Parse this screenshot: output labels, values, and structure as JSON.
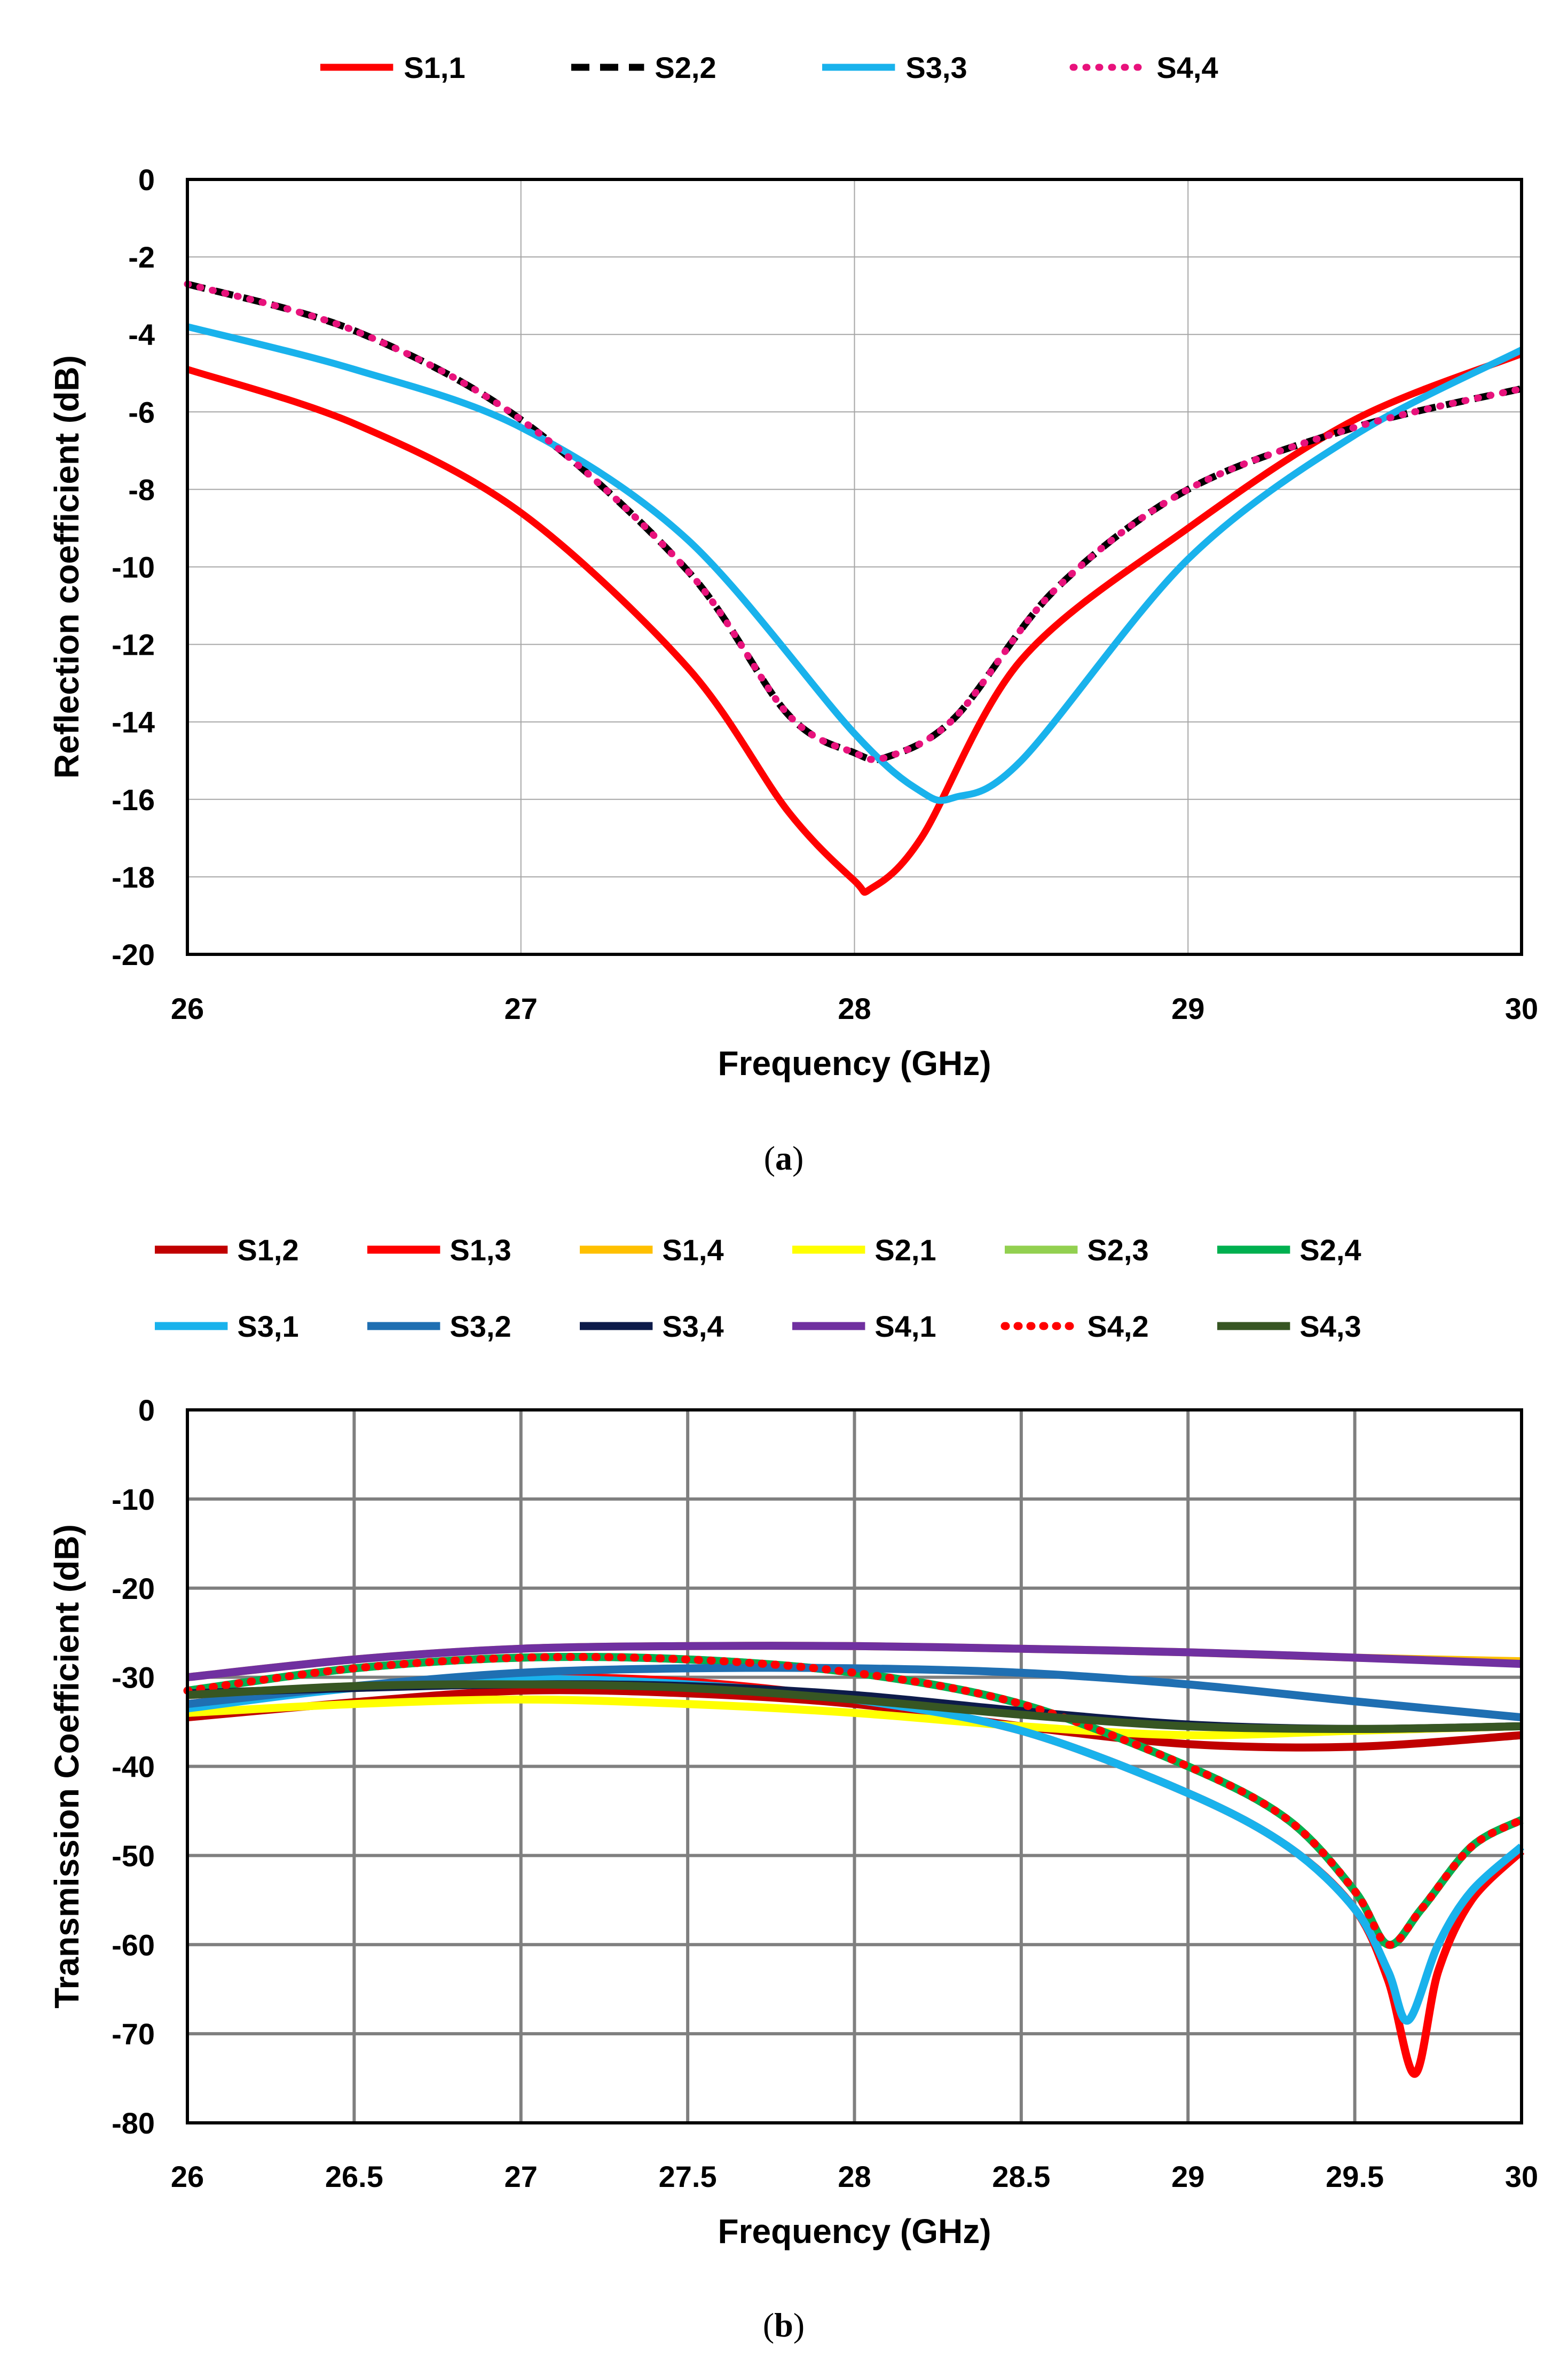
{
  "chart_data": [
    {
      "type": "line",
      "panel": "a",
      "caption_open": "(",
      "caption_letter": "a",
      "caption_close": ")",
      "xlabel": "Frequency (GHz)",
      "ylabel": "Reflection coefficient (dB)",
      "xlim": [
        26,
        30
      ],
      "ylim": [
        -20,
        0
      ],
      "xticks": [
        26,
        27,
        28,
        29,
        30
      ],
      "yticks": [
        0,
        -2,
        -4,
        -6,
        -8,
        -10,
        -12,
        -14,
        -16,
        -18,
        -20
      ],
      "legend_position": "top",
      "series": [
        {
          "name": "S1,1",
          "color": "#ff0000",
          "style": "solid",
          "x": [
            26,
            26.5,
            27,
            27.5,
            27.8,
            28,
            28.05,
            28.2,
            28.5,
            29,
            29.5,
            30
          ],
          "y": [
            -4.9,
            -6.3,
            -8.6,
            -12.6,
            -16.3,
            -18.1,
            -18.3,
            -17.0,
            -12.4,
            -9.0,
            -6.2,
            -4.5
          ]
        },
        {
          "name": "S2,2",
          "color": "#000000",
          "style": "dashed",
          "x": [
            26,
            26.5,
            27,
            27.5,
            27.8,
            28,
            28.1,
            28.3,
            28.6,
            29,
            29.5,
            30
          ],
          "y": [
            -2.7,
            -3.9,
            -6.2,
            -10.1,
            -13.8,
            -14.8,
            -14.9,
            -13.9,
            -10.6,
            -8.0,
            -6.4,
            -5.4
          ]
        },
        {
          "name": "S3,3",
          "color": "#19b2ec",
          "style": "solid",
          "x": [
            26,
            26.5,
            27,
            27.5,
            28,
            28.2,
            28.3,
            28.5,
            29,
            29.5,
            30
          ],
          "y": [
            -3.8,
            -4.9,
            -6.4,
            -9.3,
            -14.3,
            -15.8,
            -15.95,
            -15.0,
            -9.8,
            -6.6,
            -4.4
          ]
        },
        {
          "name": "S4,4",
          "color": "#e8127c",
          "style": "dotted",
          "x": [
            26,
            26.5,
            27,
            27.5,
            27.8,
            28,
            28.1,
            28.3,
            28.6,
            29,
            29.5,
            30
          ],
          "y": [
            -2.7,
            -3.9,
            -6.2,
            -10.1,
            -13.8,
            -14.8,
            -14.9,
            -13.9,
            -10.6,
            -8.0,
            -6.4,
            -5.4
          ]
        }
      ]
    },
    {
      "type": "line",
      "panel": "b",
      "caption_open": "(",
      "caption_letter": "b",
      "caption_close": ")",
      "xlabel": "Frequency (GHz)",
      "ylabel": "Transmission Coefficient (dB)",
      "xlim": [
        26,
        30
      ],
      "ylim": [
        -80,
        0
      ],
      "xticks": [
        26,
        26.5,
        27,
        27.5,
        28,
        28.5,
        29,
        29.5,
        30
      ],
      "yticks": [
        0,
        -10,
        -20,
        -30,
        -40,
        -50,
        -60,
        -70,
        -80
      ],
      "legend_position": "top",
      "series": [
        {
          "name": "S1,2",
          "color": "#c00000",
          "style": "solid",
          "x": [
            26,
            26.5,
            27,
            27.5,
            28,
            28.5,
            29,
            29.5,
            30
          ],
          "y": [
            -34.5,
            -32.8,
            -31.5,
            -31.8,
            -33,
            -35.5,
            -37.5,
            -37.8,
            -36.5
          ]
        },
        {
          "name": "S1,3",
          "color": "#ff0000",
          "style": "solid",
          "x": [
            26,
            26.5,
            27,
            27.5,
            28,
            28.5,
            29,
            29.3,
            29.5,
            29.6,
            29.68,
            29.75,
            29.85,
            30
          ],
          "y": [
            -33,
            -31,
            -30,
            -30.5,
            -32.5,
            -36,
            -43,
            -49,
            -56,
            -64,
            -74.5,
            -63,
            -55,
            -49.5
          ]
        },
        {
          "name": "S1,4",
          "color": "#ffc000",
          "style": "solid",
          "x": [
            26,
            26.5,
            27,
            27.5,
            28,
            28.5,
            29,
            29.5,
            30
          ],
          "y": [
            -30,
            -28,
            -26.8,
            -26.5,
            -26.5,
            -26.8,
            -27.2,
            -27.8,
            -28.2
          ]
        },
        {
          "name": "S2,1",
          "color": "#ffff00",
          "style": "solid",
          "x": [
            26,
            26.5,
            27,
            27.5,
            28,
            28.5,
            29,
            29.5,
            30
          ],
          "y": [
            -34,
            -33,
            -32.5,
            -33,
            -34,
            -35.5,
            -36.5,
            -36,
            -35.5
          ]
        },
        {
          "name": "S2,3",
          "color": "#92d050",
          "style": "solid",
          "x": [
            26,
            26.5,
            27,
            27.5,
            28,
            28.5,
            29,
            29.3,
            29.5,
            29.6,
            29.7,
            29.85,
            30
          ],
          "y": [
            -31.5,
            -29,
            -27.8,
            -28,
            -29.5,
            -33,
            -40,
            -46,
            -54,
            -60,
            -56,
            -49,
            -46
          ]
        },
        {
          "name": "S2,4",
          "color": "#00b050",
          "style": "solid",
          "x": [
            26,
            26.5,
            27,
            27.5,
            28,
            28.5,
            29,
            29.3,
            29.5,
            29.6,
            29.7,
            29.85,
            30
          ],
          "y": [
            -31.5,
            -29,
            -27.8,
            -28,
            -29.5,
            -33,
            -40,
            -46,
            -54,
            -60,
            -56,
            -49,
            -46
          ]
        },
        {
          "name": "S3,1",
          "color": "#19b2ec",
          "style": "solid",
          "x": [
            26,
            26.5,
            27,
            27.5,
            28,
            28.5,
            29,
            29.3,
            29.5,
            29.6,
            29.66,
            29.75,
            29.85,
            30
          ],
          "y": [
            -33.5,
            -31.2,
            -30.2,
            -30.8,
            -32.5,
            -36,
            -43,
            -49,
            -56,
            -63,
            -68.5,
            -60,
            -54,
            -49
          ]
        },
        {
          "name": "S3,2",
          "color": "#1f6fb2",
          "style": "solid",
          "x": [
            26,
            26.5,
            27,
            27.5,
            28,
            28.5,
            29,
            29.5,
            30
          ],
          "y": [
            -33,
            -31,
            -29.5,
            -29,
            -29,
            -29.5,
            -30.8,
            -32.7,
            -34.5
          ]
        },
        {
          "name": "S3,4",
          "color": "#0d1b4a",
          "style": "solid",
          "x": [
            26,
            26.5,
            27,
            27.5,
            28,
            28.5,
            29,
            29.5,
            30
          ],
          "y": [
            -31.8,
            -31.2,
            -30.8,
            -31,
            -32,
            -33.8,
            -35.3,
            -35.8,
            -35.5
          ]
        },
        {
          "name": "S4,1",
          "color": "#7030a0",
          "style": "solid",
          "x": [
            26,
            26.5,
            27,
            27.5,
            28,
            28.5,
            29,
            29.5,
            30
          ],
          "y": [
            -30,
            -28,
            -26.8,
            -26.5,
            -26.5,
            -26.8,
            -27.2,
            -27.8,
            -28.5
          ]
        },
        {
          "name": "S4,2",
          "color": "#ff0000",
          "style": "dotted",
          "x": [
            26,
            26.5,
            27,
            27.5,
            28,
            28.5,
            29,
            29.3,
            29.5,
            29.6,
            29.7,
            29.85,
            30
          ],
          "y": [
            -31.5,
            -29,
            -27.8,
            -28,
            -29.5,
            -33,
            -40,
            -46,
            -54,
            -60,
            -56,
            -49,
            -46
          ]
        },
        {
          "name": "S4,3",
          "color": "#375623",
          "style": "solid",
          "x": [
            26,
            26.5,
            27,
            27.5,
            28,
            28.5,
            29,
            29.5,
            30
          ],
          "y": [
            -32,
            -31,
            -30.8,
            -31.2,
            -32.5,
            -34.2,
            -35.5,
            -35.8,
            -35.5
          ]
        }
      ]
    }
  ]
}
